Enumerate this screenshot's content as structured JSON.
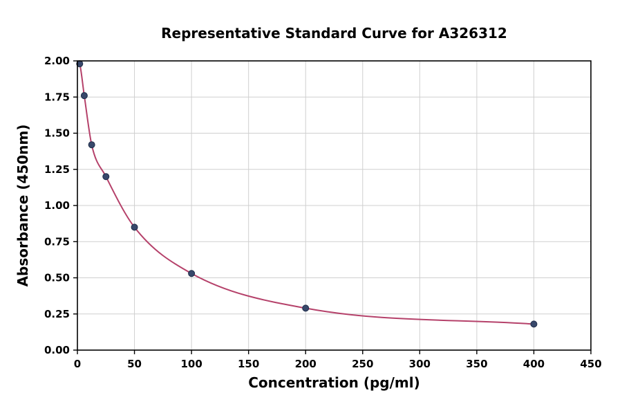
{
  "chart_data": {
    "type": "scatter",
    "title": "Representative Standard Curve for A326312",
    "xlabel": "Concentration (pg/ml)",
    "ylabel": "Absorbance (450nm)",
    "xlim": [
      0,
      450
    ],
    "ylim": [
      0,
      2.0
    ],
    "xticks": [
      0,
      50,
      100,
      150,
      200,
      250,
      300,
      350,
      400,
      450
    ],
    "yticks": [
      0.0,
      0.25,
      0.5,
      0.75,
      1.0,
      1.25,
      1.5,
      1.75,
      2.0
    ],
    "grid": true,
    "legend": "none",
    "points": [
      [
        2,
        1.98
      ],
      [
        6,
        1.76
      ],
      [
        12.5,
        1.42
      ],
      [
        25,
        1.2
      ],
      [
        50,
        0.85
      ],
      [
        100,
        0.53
      ],
      [
        200,
        0.29
      ],
      [
        400,
        0.18
      ]
    ],
    "curve_points": [
      [
        0,
        2.0
      ],
      [
        2,
        1.98
      ],
      [
        6,
        1.76
      ],
      [
        12.5,
        1.42
      ],
      [
        25,
        1.2
      ],
      [
        50,
        0.85
      ],
      [
        100,
        0.53
      ],
      [
        200,
        0.29
      ],
      [
        400,
        0.18
      ]
    ],
    "curve_color": "#b5416a",
    "point_color": "#38486b",
    "point_edge_color": "#1f2c48",
    "grid_color": "#cfcfcf",
    "axis_color": "#000000",
    "background_color": "#ffffff"
  }
}
